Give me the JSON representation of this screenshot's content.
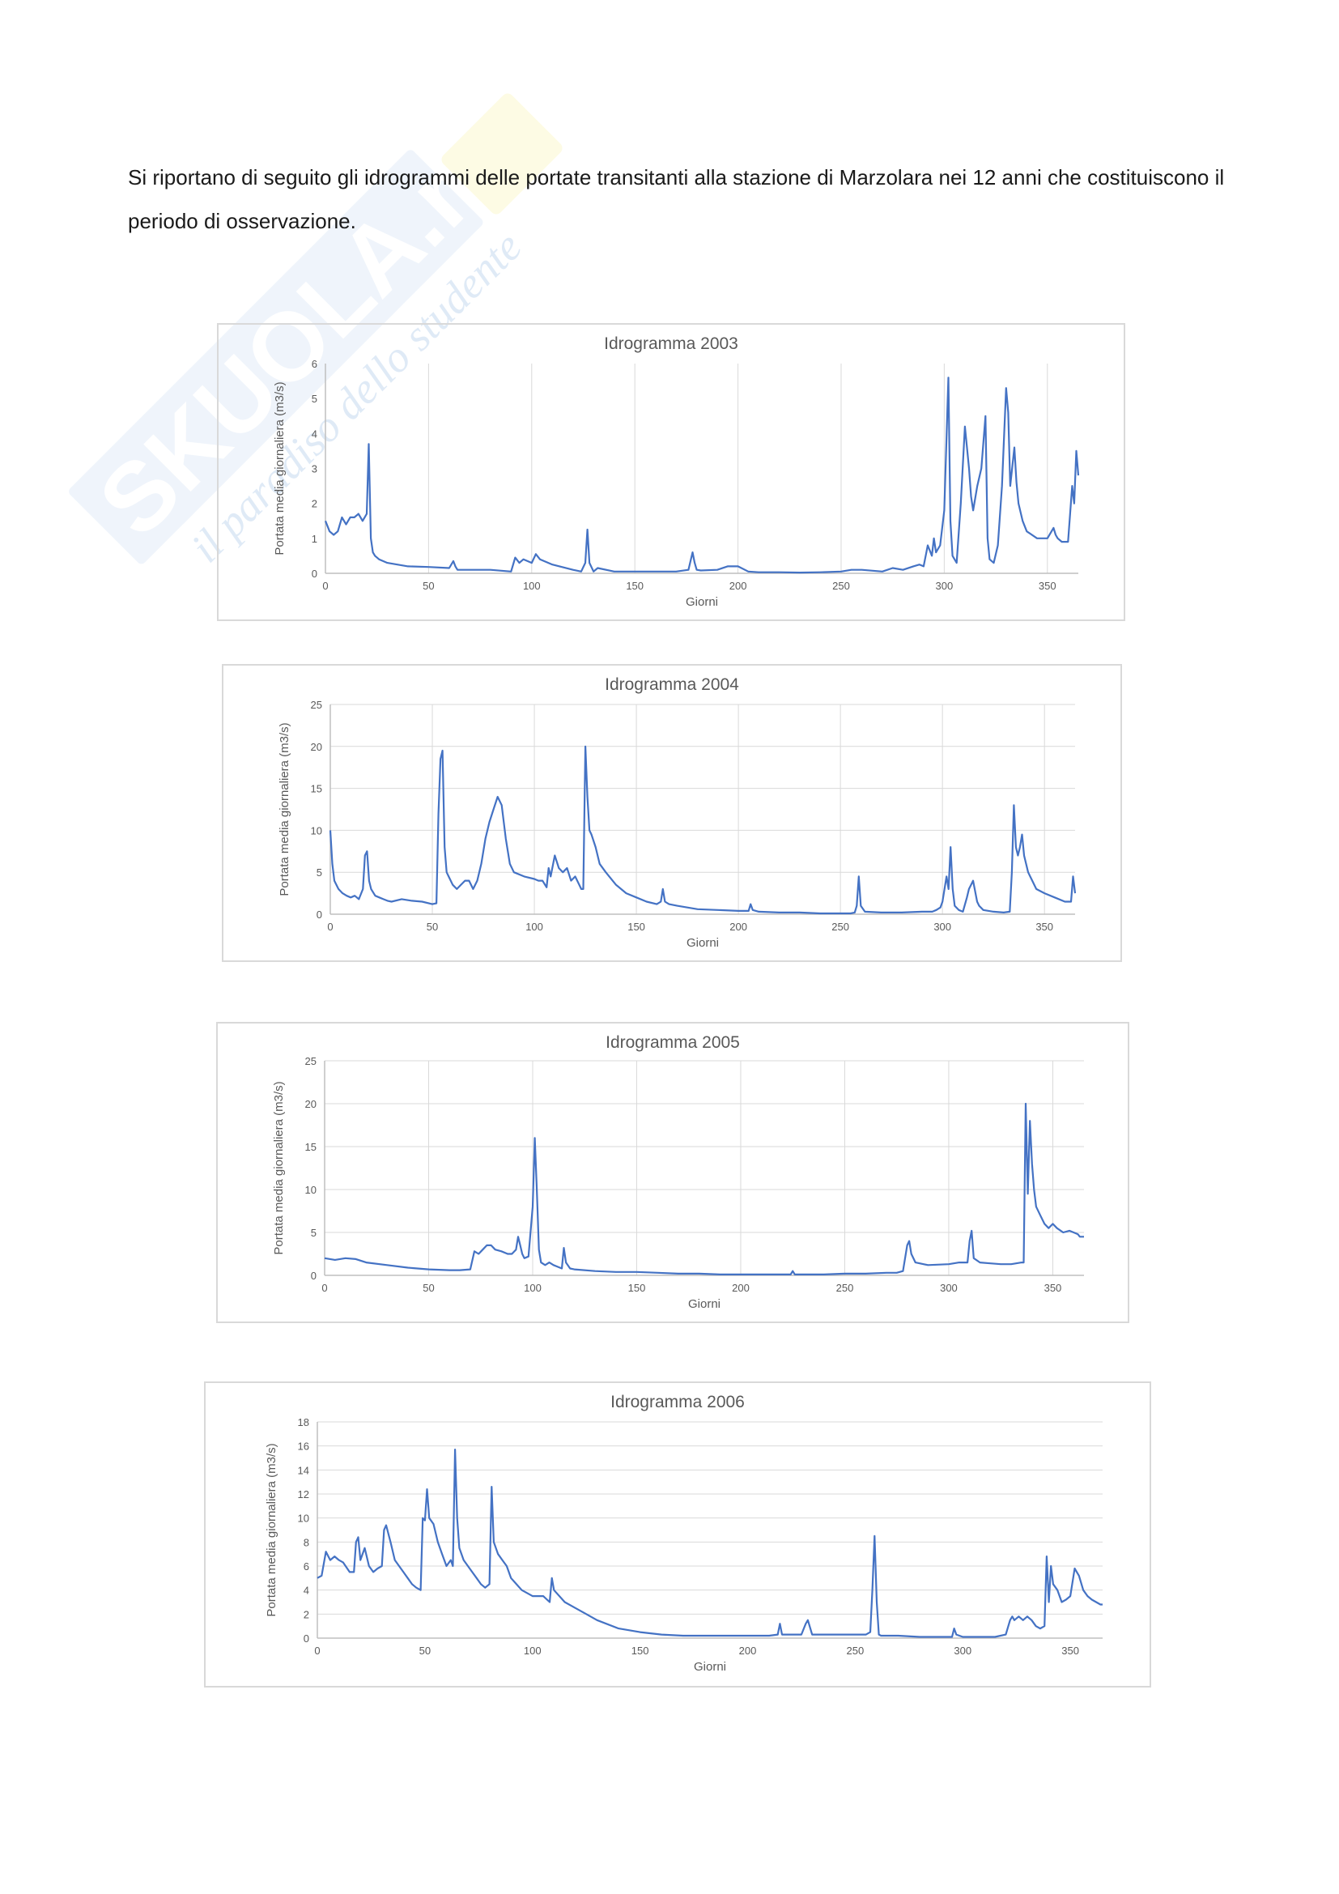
{
  "document": {
    "intro_text": "Si riportano di seguito gli idrogrammi delle portate transitanti alla stazione di Marzolara nei 12 anni che costituiscono il periodo di osservazione.",
    "watermark": {
      "brand": "SKUOLA.net",
      "tagline": "il paradiso dello studente"
    }
  },
  "chart_data": [
    {
      "type": "line",
      "title": "Idrogramma 2003",
      "xlabel": "Giorni",
      "ylabel": "Portata media giornaliera (m3/s)",
      "xlim": [
        0,
        365
      ],
      "ylim": [
        0,
        6
      ],
      "xticks": [
        0,
        50,
        100,
        150,
        200,
        250,
        300,
        350
      ],
      "yticks": [
        0,
        1,
        2,
        3,
        4,
        5,
        6
      ],
      "grid": "vertical",
      "color": "#4472c4",
      "series": [
        {
          "x": [
            0,
            2,
            4,
            6,
            8,
            10,
            12,
            14,
            16,
            18,
            20,
            21,
            22,
            23,
            24,
            26,
            30,
            40,
            50,
            60,
            62,
            63,
            64,
            70,
            80,
            90,
            92,
            94,
            96,
            100,
            102,
            104,
            110,
            120,
            124,
            126,
            127,
            128,
            130,
            132,
            140,
            150,
            160,
            170,
            176,
            178,
            179,
            180,
            182,
            190,
            195,
            200,
            205,
            210,
            220,
            230,
            240,
            250,
            255,
            260,
            270,
            275,
            280,
            285,
            288,
            290,
            292,
            294,
            295,
            296,
            298,
            300,
            302,
            303,
            304,
            305,
            306,
            308,
            310,
            312,
            313,
            314,
            316,
            318,
            320,
            321,
            322,
            324,
            326,
            328,
            330,
            331,
            332,
            334,
            335,
            336,
            338,
            340,
            345,
            350,
            353,
            354,
            355,
            357,
            360,
            362,
            363,
            364,
            365
          ],
          "y": [
            1.5,
            1.2,
            1.1,
            1.2,
            1.6,
            1.4,
            1.6,
            1.6,
            1.7,
            1.5,
            1.7,
            3.7,
            1.0,
            0.6,
            0.5,
            0.4,
            0.3,
            0.2,
            0.18,
            0.15,
            0.35,
            0.2,
            0.1,
            0.1,
            0.1,
            0.05,
            0.45,
            0.3,
            0.4,
            0.3,
            0.55,
            0.4,
            0.25,
            0.1,
            0.05,
            0.3,
            1.25,
            0.3,
            0.05,
            0.15,
            0.05,
            0.05,
            0.05,
            0.05,
            0.1,
            0.6,
            0.3,
            0.1,
            0.08,
            0.1,
            0.2,
            0.2,
            0.05,
            0.03,
            0.03,
            0.02,
            0.03,
            0.05,
            0.1,
            0.1,
            0.05,
            0.15,
            0.1,
            0.2,
            0.25,
            0.2,
            0.8,
            0.5,
            1.0,
            0.6,
            0.8,
            1.8,
            5.6,
            1.5,
            0.5,
            0.4,
            0.3,
            2.0,
            4.2,
            3.0,
            2.2,
            1.8,
            2.5,
            3.0,
            4.5,
            1.0,
            0.4,
            0.3,
            0.8,
            2.5,
            5.3,
            4.6,
            2.5,
            3.6,
            2.6,
            2.0,
            1.5,
            1.2,
            1.0,
            1.0,
            1.3,
            1.1,
            1.0,
            0.9,
            0.9,
            2.5,
            2.0,
            3.5,
            2.8
          ]
        }
      ]
    },
    {
      "type": "line",
      "title": "Idrogramma 2004",
      "xlabel": "Giorni",
      "ylabel": "Portata media giornaliera (m3/s)",
      "xlim": [
        0,
        365
      ],
      "ylim": [
        0,
        25
      ],
      "xticks": [
        0,
        50,
        100,
        150,
        200,
        250,
        300,
        350
      ],
      "yticks": [
        0,
        5,
        10,
        15,
        20,
        25
      ],
      "grid": "both",
      "color": "#4472c4",
      "series": [
        {
          "x": [
            0,
            1,
            2,
            4,
            6,
            8,
            10,
            12,
            14,
            16,
            17,
            18,
            19,
            20,
            22,
            24,
            26,
            28,
            30,
            35,
            40,
            45,
            50,
            52,
            53,
            54,
            55,
            56,
            57,
            58,
            60,
            62,
            64,
            66,
            68,
            70,
            72,
            74,
            76,
            78,
            80,
            82,
            84,
            86,
            88,
            90,
            95,
            100,
            102,
            104,
            106,
            107,
            108,
            110,
            112,
            114,
            116,
            118,
            120,
            122,
            123,
            124,
            125,
            126,
            127,
            128,
            130,
            132,
            135,
            140,
            145,
            150,
            155,
            160,
            162,
            163,
            164,
            166,
            170,
            175,
            180,
            190,
            200,
            205,
            206,
            207,
            210,
            220,
            230,
            240,
            250,
            255,
            257,
            258,
            259,
            260,
            262,
            270,
            280,
            290,
            295,
            297,
            299,
            300,
            302,
            303,
            304,
            305,
            306,
            308,
            310,
            312,
            313,
            314,
            315,
            317,
            318,
            320,
            325,
            330,
            333,
            334,
            335,
            336,
            337,
            338,
            339,
            340,
            342,
            344,
            346,
            350,
            355,
            360,
            363,
            364,
            365
          ],
          "y": [
            10,
            6,
            4,
            3,
            2.5,
            2.2,
            2,
            2.2,
            1.8,
            3,
            7,
            7.5,
            4,
            3,
            2.2,
            2,
            1.8,
            1.6,
            1.5,
            1.8,
            1.6,
            1.5,
            1.2,
            1.3,
            12,
            18.5,
            19.5,
            8,
            5,
            4.5,
            3.5,
            3,
            3.5,
            4,
            4,
            3,
            4,
            6,
            9,
            11,
            12.5,
            14,
            13,
            9,
            6,
            5,
            4.5,
            4.2,
            4.0,
            4.0,
            3.2,
            5.5,
            4.5,
            7,
            5.5,
            5,
            5.5,
            4,
            4.5,
            3.5,
            3,
            3,
            20,
            14,
            10,
            9.5,
            8,
            6,
            5,
            3.5,
            2.5,
            2,
            1.5,
            1.2,
            1.5,
            3,
            1.5,
            1.2,
            1,
            0.8,
            0.6,
            0.5,
            0.4,
            0.4,
            1.2,
            0.5,
            0.3,
            0.2,
            0.2,
            0.1,
            0.1,
            0.1,
            0.2,
            1,
            4.5,
            1,
            0.3,
            0.2,
            0.2,
            0.3,
            0.3,
            0.5,
            0.8,
            1.5,
            4.5,
            3,
            8,
            3,
            1,
            0.5,
            0.3,
            2,
            3,
            3.5,
            4,
            1.5,
            1,
            0.5,
            0.3,
            0.2,
            0.3,
            5,
            13,
            8,
            7,
            8,
            9.5,
            7,
            5,
            4,
            3,
            2.5,
            2,
            1.5,
            1.5,
            4.5,
            2.5
          ]
        }
      ]
    },
    {
      "type": "line",
      "title": "Idrogramma 2005",
      "xlabel": "Giorni",
      "ylabel": "Portata media giornaliera (m3/s)",
      "xlim": [
        0,
        365
      ],
      "ylim": [
        0,
        25
      ],
      "xticks": [
        0,
        50,
        100,
        150,
        200,
        250,
        300,
        350
      ],
      "yticks": [
        0,
        5,
        10,
        15,
        20,
        25
      ],
      "grid": "both",
      "color": "#4472c4",
      "series": [
        {
          "x": [
            0,
            5,
            10,
            15,
            20,
            30,
            40,
            50,
            60,
            65,
            70,
            72,
            74,
            76,
            78,
            80,
            82,
            85,
            88,
            90,
            92,
            93,
            94,
            95,
            96,
            98,
            100,
            101,
            102,
            103,
            104,
            106,
            108,
            110,
            112,
            114,
            115,
            116,
            118,
            120,
            130,
            140,
            150,
            160,
            170,
            180,
            190,
            195,
            200,
            210,
            220,
            224,
            225,
            226,
            230,
            240,
            250,
            260,
            270,
            275,
            278,
            280,
            281,
            282,
            284,
            290,
            300,
            305,
            309,
            310,
            311,
            312,
            315,
            320,
            325,
            330,
            335,
            336,
            337,
            338,
            339,
            340,
            341,
            342,
            344,
            346,
            348,
            350,
            352,
            355,
            358,
            360,
            362,
            363,
            364,
            365
          ],
          "y": [
            2,
            1.8,
            2,
            1.9,
            1.5,
            1.2,
            0.9,
            0.7,
            0.6,
            0.6,
            0.7,
            2.8,
            2.5,
            3,
            3.5,
            3.5,
            3,
            2.8,
            2.5,
            2.5,
            3,
            4.5,
            3.5,
            2.5,
            2,
            2.2,
            8,
            16,
            10,
            3,
            1.5,
            1.2,
            1.5,
            1.2,
            1,
            0.8,
            3.2,
            1.5,
            0.8,
            0.7,
            0.5,
            0.4,
            0.4,
            0.3,
            0.2,
            0.2,
            0.1,
            0.1,
            0.1,
            0.1,
            0.1,
            0.1,
            0.5,
            0.1,
            0.1,
            0.1,
            0.2,
            0.2,
            0.3,
            0.3,
            0.5,
            3.5,
            4,
            2.5,
            1.5,
            1.2,
            1.3,
            1.5,
            1.5,
            4,
            5.2,
            2,
            1.5,
            1.4,
            1.3,
            1.3,
            1.5,
            1.5,
            20,
            9.5,
            18,
            13,
            10,
            8,
            7,
            6,
            5.5,
            6,
            5.5,
            5,
            5.2,
            5,
            4.8,
            4.5,
            4.5,
            4.5
          ]
        }
      ]
    },
    {
      "type": "line",
      "title": "Idrogramma 2006",
      "xlabel": "Giorni",
      "ylabel": "Portata media giornaliera (m3/s)",
      "xlim": [
        0,
        365
      ],
      "ylim": [
        0,
        18
      ],
      "xticks": [
        0,
        50,
        100,
        150,
        200,
        250,
        300,
        350
      ],
      "yticks": [
        0,
        2,
        4,
        6,
        8,
        10,
        12,
        14,
        16,
        18
      ],
      "grid": "horizontal",
      "color": "#4472c4",
      "series": [
        {
          "x": [
            0,
            2,
            4,
            6,
            8,
            10,
            12,
            15,
            17,
            18,
            19,
            20,
            22,
            24,
            26,
            28,
            30,
            31,
            32,
            34,
            36,
            38,
            40,
            42,
            44,
            46,
            48,
            49,
            50,
            51,
            52,
            54,
            56,
            58,
            60,
            62,
            63,
            64,
            65,
            66,
            68,
            70,
            72,
            74,
            76,
            78,
            80,
            81,
            82,
            84,
            86,
            88,
            90,
            95,
            100,
            105,
            108,
            109,
            110,
            115,
            120,
            125,
            130,
            140,
            150,
            160,
            170,
            180,
            190,
            200,
            210,
            214,
            215,
            216,
            220,
            225,
            227,
            228,
            230,
            240,
            250,
            255,
            257,
            258,
            259,
            260,
            261,
            262,
            265,
            270,
            280,
            290,
            295,
            296,
            297,
            300,
            310,
            315,
            320,
            322,
            323,
            324,
            326,
            328,
            330,
            332,
            334,
            336,
            338,
            339,
            340,
            341,
            342,
            344,
            346,
            348,
            350,
            352,
            354,
            356,
            358,
            360,
            362,
            364,
            365
          ],
          "y": [
            5,
            5.2,
            7.2,
            6.5,
            6.8,
            6.5,
            6.3,
            5.5,
            5.5,
            8,
            8.4,
            6.5,
            7.5,
            6,
            5.5,
            5.8,
            6,
            9,
            9.4,
            8,
            6.5,
            6,
            5.5,
            5,
            4.5,
            4.2,
            4,
            10,
            9.8,
            12.4,
            10,
            9.5,
            8,
            7,
            6,
            6.5,
            6,
            15.7,
            10,
            7.5,
            6.5,
            6,
            5.5,
            5,
            4.5,
            4.2,
            4.5,
            12.6,
            8,
            7,
            6.5,
            6,
            5,
            4,
            3.5,
            3.5,
            3,
            5,
            4,
            3,
            2.5,
            2,
            1.5,
            0.8,
            0.5,
            0.3,
            0.2,
            0.2,
            0.2,
            0.2,
            0.2,
            0.3,
            1.2,
            0.3,
            0.3,
            0.3,
            1.2,
            1.5,
            0.3,
            0.3,
            0.3,
            0.3,
            0.5,
            4,
            8.5,
            3,
            0.3,
            0.2,
            0.2,
            0.2,
            0.1,
            0.1,
            0.1,
            0.8,
            0.3,
            0.1,
            0.1,
            0.1,
            0.3,
            1.5,
            1.8,
            1.5,
            1.8,
            1.5,
            1.8,
            1.5,
            1.0,
            0.8,
            1.0,
            6.8,
            3,
            6,
            4.5,
            4,
            3,
            3.2,
            3.5,
            5.8,
            5.2,
            4,
            3.5,
            3.2,
            3,
            2.8,
            2.8
          ]
        }
      ]
    }
  ]
}
